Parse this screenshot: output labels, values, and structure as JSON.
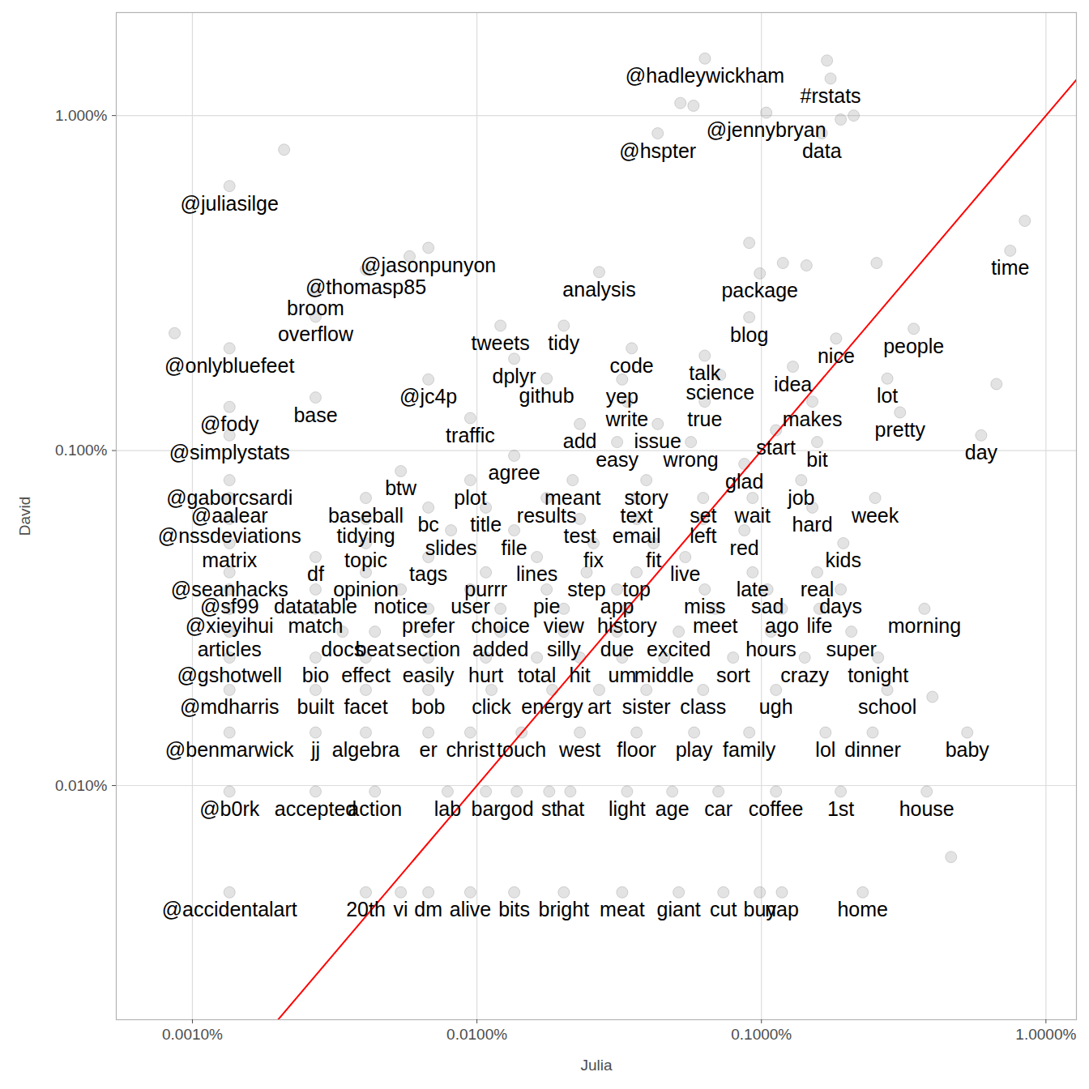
{
  "chart_data": {
    "type": "scatter",
    "x_label": "Julia",
    "y_label": "David",
    "log": true,
    "grid": true,
    "color": "#808080",
    "xlim": [
      0.00054,
      1.28
    ],
    "ylim": [
      0.002,
      2.03
    ],
    "xticks": [
      {
        "value": 0.001,
        "label": "0.0010%"
      },
      {
        "value": 0.01,
        "label": "0.0100%"
      },
      {
        "value": 0.1,
        "label": "0.1000%"
      },
      {
        "value": 1,
        "label": "1.0000%"
      }
    ],
    "yticks": [
      {
        "value": 0.01,
        "label": "0.010%"
      },
      {
        "value": 0.1,
        "label": "0.100%"
      },
      {
        "value": 1,
        "label": "1.000%"
      }
    ],
    "reference_line": {
      "x": [
        0.00054,
        1.28
      ],
      "y": [
        0.00054,
        1.28
      ],
      "color": "#ff0000"
    },
    "points": [
      {
        "label": "@hadleywickham",
        "x": 0.0633,
        "y": 1.48
      },
      {
        "label": "#rstats",
        "x": 0.175,
        "y": 1.29
      },
      {
        "label": "@jennybryan",
        "x": 0.104,
        "y": 1.02
      },
      {
        "label": "@hspter",
        "x": 0.0432,
        "y": 0.885
      },
      {
        "label": "data",
        "x": 0.163,
        "y": 0.885
      },
      {
        "label": "@juliasilge",
        "x": 0.00135,
        "y": 0.616
      },
      {
        "label": "@jasonpunyon",
        "x": 0.00675,
        "y": 0.403
      },
      {
        "label": "time",
        "x": 0.749,
        "y": 0.395
      },
      {
        "label": "@thomasp85",
        "x": 0.00407,
        "y": 0.347
      },
      {
        "label": "analysis",
        "x": 0.0269,
        "y": 0.341
      },
      {
        "label": "package",
        "x": 0.0987,
        "y": 0.338
      },
      {
        "label": "broom",
        "x": 0.00271,
        "y": 0.299
      },
      {
        "label": "overflow",
        "x": 0.00271,
        "y": 0.251
      },
      {
        "label": "blog",
        "x": 0.0906,
        "y": 0.25
      },
      {
        "label": "tweets",
        "x": 0.0121,
        "y": 0.236
      },
      {
        "label": "tidy",
        "x": 0.0202,
        "y": 0.236
      },
      {
        "label": "people",
        "x": 0.343,
        "y": 0.231
      },
      {
        "label": "nice",
        "x": 0.183,
        "y": 0.216
      },
      {
        "label": "@onlybluefeet",
        "x": 0.00135,
        "y": 0.202
      },
      {
        "label": "code",
        "x": 0.035,
        "y": 0.202
      },
      {
        "label": "talk",
        "x": 0.0632,
        "y": 0.192
      },
      {
        "label": "dplyr",
        "x": 0.01352,
        "y": 0.188
      },
      {
        "label": "idea",
        "x": 0.129,
        "y": 0.178
      },
      {
        "label": "science",
        "x": 0.0716,
        "y": 0.168
      },
      {
        "label": "@jc4p",
        "x": 0.00675,
        "y": 0.163
      },
      {
        "label": "github",
        "x": 0.01758,
        "y": 0.164
      },
      {
        "label": "yep",
        "x": 0.0324,
        "y": 0.163
      },
      {
        "label": "lot",
        "x": 0.277,
        "y": 0.164
      },
      {
        "label": "base",
        "x": 0.00271,
        "y": 0.144
      },
      {
        "label": "write",
        "x": 0.0337,
        "y": 0.14
      },
      {
        "label": "true",
        "x": 0.0632,
        "y": 0.14
      },
      {
        "label": "makes",
        "x": 0.151,
        "y": 0.14
      },
      {
        "label": "@fody",
        "x": 0.00135,
        "y": 0.135
      },
      {
        "label": "pretty",
        "x": 0.307,
        "y": 0.13
      },
      {
        "label": "traffic",
        "x": 0.00948,
        "y": 0.125
      },
      {
        "label": "add",
        "x": 0.023,
        "y": 0.12
      },
      {
        "label": "issue",
        "x": 0.0432,
        "y": 0.12
      },
      {
        "label": "start",
        "x": 0.1125,
        "y": 0.115
      },
      {
        "label": "@simplystats",
        "x": 0.00135,
        "y": 0.111
      },
      {
        "label": "day",
        "x": 0.592,
        "y": 0.111
      },
      {
        "label": "easy",
        "x": 0.0311,
        "y": 0.106
      },
      {
        "label": "wrong",
        "x": 0.0565,
        "y": 0.106
      },
      {
        "label": "bit",
        "x": 0.157,
        "y": 0.106
      },
      {
        "label": "agree",
        "x": 0.01352,
        "y": 0.0965
      },
      {
        "label": "glad",
        "x": 0.0871,
        "y": 0.0912
      },
      {
        "label": "btw",
        "x": 0.0054,
        "y": 0.0868
      },
      {
        "label": "@gaborcsardi",
        "x": 0.00135,
        "y": 0.0816
      },
      {
        "label": "plot",
        "x": 0.00948,
        "y": 0.0816
      },
      {
        "label": "meant",
        "x": 0.0217,
        "y": 0.0816
      },
      {
        "label": "story",
        "x": 0.0394,
        "y": 0.0816
      },
      {
        "label": "job",
        "x": 0.138,
        "y": 0.0816
      },
      {
        "label": "@aalear",
        "x": 0.00135,
        "y": 0.0722
      },
      {
        "label": "baseball",
        "x": 0.00407,
        "y": 0.0722
      },
      {
        "label": "results",
        "x": 0.01758,
        "y": 0.0722
      },
      {
        "label": "text",
        "x": 0.0364,
        "y": 0.0722
      },
      {
        "label": "set",
        "x": 0.0624,
        "y": 0.0722
      },
      {
        "label": "wait",
        "x": 0.0931,
        "y": 0.0722
      },
      {
        "label": "week",
        "x": 0.251,
        "y": 0.0722
      },
      {
        "label": "bc",
        "x": 0.00675,
        "y": 0.0676
      },
      {
        "label": "title",
        "x": 0.01075,
        "y": 0.0676
      },
      {
        "label": "hard",
        "x": 0.151,
        "y": 0.0676
      },
      {
        "label": "@nssdeviations",
        "x": 0.00135,
        "y": 0.0625
      },
      {
        "label": "tidying",
        "x": 0.00407,
        "y": 0.0625
      },
      {
        "label": "test",
        "x": 0.023,
        "y": 0.0625
      },
      {
        "label": "email",
        "x": 0.0364,
        "y": 0.0625
      },
      {
        "label": "left",
        "x": 0.0624,
        "y": 0.0625
      },
      {
        "label": "slides",
        "x": 0.00811,
        "y": 0.0578
      },
      {
        "label": "file",
        "x": 0.01352,
        "y": 0.0578
      },
      {
        "label": "red",
        "x": 0.0871,
        "y": 0.0578
      },
      {
        "label": "matrix",
        "x": 0.00135,
        "y": 0.0529
      },
      {
        "label": "topic",
        "x": 0.00407,
        "y": 0.0529
      },
      {
        "label": "fix",
        "x": 0.0257,
        "y": 0.0529
      },
      {
        "label": "fit",
        "x": 0.0418,
        "y": 0.0529
      },
      {
        "label": "kids",
        "x": 0.194,
        "y": 0.0529
      },
      {
        "label": "df",
        "x": 0.00271,
        "y": 0.0481
      },
      {
        "label": "tags",
        "x": 0.00675,
        "y": 0.0481
      },
      {
        "label": "lines",
        "x": 0.01625,
        "y": 0.0481
      },
      {
        "label": "live",
        "x": 0.054,
        "y": 0.0481
      },
      {
        "label": "@seanhacks",
        "x": 0.00135,
        "y": 0.0433
      },
      {
        "label": "opinion",
        "x": 0.00407,
        "y": 0.0433
      },
      {
        "label": "purrr",
        "x": 0.01075,
        "y": 0.0433
      },
      {
        "label": "step",
        "x": 0.0243,
        "y": 0.0433
      },
      {
        "label": "top",
        "x": 0.0364,
        "y": 0.0433
      },
      {
        "label": "late",
        "x": 0.0931,
        "y": 0.0433
      },
      {
        "label": "real",
        "x": 0.157,
        "y": 0.0433
      },
      {
        "label": "@sf99",
        "x": 0.00135,
        "y": 0.0385
      },
      {
        "label": "datatable",
        "x": 0.00271,
        "y": 0.0385
      },
      {
        "label": "notice",
        "x": 0.0054,
        "y": 0.0385
      },
      {
        "label": "user",
        "x": 0.00948,
        "y": 0.0385
      },
      {
        "label": "pie",
        "x": 0.01758,
        "y": 0.0385
      },
      {
        "label": "app",
        "x": 0.0311,
        "y": 0.0385
      },
      {
        "label": "miss",
        "x": 0.0632,
        "y": 0.0385
      },
      {
        "label": "sad",
        "x": 0.105,
        "y": 0.0385
      },
      {
        "label": "days",
        "x": 0.19,
        "y": 0.0385
      },
      {
        "label": "@xieyihui",
        "x": 0.00135,
        "y": 0.0337
      },
      {
        "label": "match",
        "x": 0.00271,
        "y": 0.0337
      },
      {
        "label": "prefer",
        "x": 0.00675,
        "y": 0.0337
      },
      {
        "label": "choice",
        "x": 0.0121,
        "y": 0.0337
      },
      {
        "label": "view",
        "x": 0.0202,
        "y": 0.0337
      },
      {
        "label": "history",
        "x": 0.0337,
        "y": 0.0337
      },
      {
        "label": "meet",
        "x": 0.0688,
        "y": 0.0337
      },
      {
        "label": "ago",
        "x": 0.118,
        "y": 0.0337
      },
      {
        "label": "life",
        "x": 0.16,
        "y": 0.0337
      },
      {
        "label": "morning",
        "x": 0.374,
        "y": 0.0337
      },
      {
        "label": "articles",
        "x": 0.00135,
        "y": 0.0288
      },
      {
        "label": "docs",
        "x": 0.00337,
        "y": 0.0288
      },
      {
        "label": "beat",
        "x": 0.00438,
        "y": 0.0288
      },
      {
        "label": "section",
        "x": 0.00675,
        "y": 0.0288
      },
      {
        "label": "added",
        "x": 0.0121,
        "y": 0.0288
      },
      {
        "label": "silly",
        "x": 0.0202,
        "y": 0.0288
      },
      {
        "label": "due",
        "x": 0.0311,
        "y": 0.0288
      },
      {
        "label": "excited",
        "x": 0.0512,
        "y": 0.0288
      },
      {
        "label": "hours",
        "x": 0.108,
        "y": 0.0288
      },
      {
        "label": "super",
        "x": 0.207,
        "y": 0.0288
      },
      {
        "label": "@gshotwell",
        "x": 0.00135,
        "y": 0.0241
      },
      {
        "label": "bio",
        "x": 0.00271,
        "y": 0.0241
      },
      {
        "label": "effect",
        "x": 0.00407,
        "y": 0.0241
      },
      {
        "label": "easily",
        "x": 0.00675,
        "y": 0.0241
      },
      {
        "label": "hurt",
        "x": 0.01075,
        "y": 0.0241
      },
      {
        "label": "total",
        "x": 0.01625,
        "y": 0.0241
      },
      {
        "label": "hit",
        "x": 0.023,
        "y": 0.0241
      },
      {
        "label": "um",
        "x": 0.0324,
        "y": 0.0241
      },
      {
        "label": "middle",
        "x": 0.0455,
        "y": 0.0241
      },
      {
        "label": "sort",
        "x": 0.0795,
        "y": 0.0241
      },
      {
        "label": "crazy",
        "x": 0.142,
        "y": 0.0241
      },
      {
        "label": "tonight",
        "x": 0.257,
        "y": 0.0241
      },
      {
        "label": "@mdharris",
        "x": 0.00135,
        "y": 0.0193
      },
      {
        "label": "built",
        "x": 0.00271,
        "y": 0.0193
      },
      {
        "label": "facet",
        "x": 0.00407,
        "y": 0.0193
      },
      {
        "label": "bob",
        "x": 0.00675,
        "y": 0.0193
      },
      {
        "label": "click",
        "x": 0.01125,
        "y": 0.0193
      },
      {
        "label": "energy",
        "x": 0.0184,
        "y": 0.0193
      },
      {
        "label": "art",
        "x": 0.0269,
        "y": 0.0193
      },
      {
        "label": "sister",
        "x": 0.0394,
        "y": 0.0193
      },
      {
        "label": "class",
        "x": 0.0624,
        "y": 0.0193
      },
      {
        "label": "ugh",
        "x": 0.1125,
        "y": 0.0193
      },
      {
        "label": "school",
        "x": 0.277,
        "y": 0.0193
      },
      {
        "label": "@benmarwick",
        "x": 0.00135,
        "y": 0.0144
      },
      {
        "label": "jj",
        "x": 0.00271,
        "y": 0.0144
      },
      {
        "label": "algebra",
        "x": 0.00407,
        "y": 0.0144
      },
      {
        "label": "er",
        "x": 0.00675,
        "y": 0.0144
      },
      {
        "label": "christ",
        "x": 0.00948,
        "y": 0.0144
      },
      {
        "label": "touch",
        "x": 0.01435,
        "y": 0.0144
      },
      {
        "label": "west",
        "x": 0.023,
        "y": 0.0144
      },
      {
        "label": "floor",
        "x": 0.0364,
        "y": 0.0144
      },
      {
        "label": "play",
        "x": 0.058,
        "y": 0.0144
      },
      {
        "label": "family",
        "x": 0.0906,
        "y": 0.0144
      },
      {
        "label": "lol",
        "x": 0.168,
        "y": 0.0144
      },
      {
        "label": "dinner",
        "x": 0.246,
        "y": 0.0144
      },
      {
        "label": "baby",
        "x": 0.529,
        "y": 0.0144
      },
      {
        "label": "@b0rk",
        "x": 0.00135,
        "y": 0.0096
      },
      {
        "label": "accepted",
        "x": 0.00271,
        "y": 0.0096
      },
      {
        "label": "action",
        "x": 0.00438,
        "y": 0.0096
      },
      {
        "label": "lab",
        "x": 0.00789,
        "y": 0.0096
      },
      {
        "label": "bar",
        "x": 0.01075,
        "y": 0.0096
      },
      {
        "label": "god",
        "x": 0.0138,
        "y": 0.0096
      },
      {
        "label": "st",
        "x": 0.01795,
        "y": 0.0096
      },
      {
        "label": "hat",
        "x": 0.0213,
        "y": 0.0096
      },
      {
        "label": "light",
        "x": 0.0337,
        "y": 0.0096
      },
      {
        "label": "age",
        "x": 0.0486,
        "y": 0.0096
      },
      {
        "label": "car",
        "x": 0.0706,
        "y": 0.0096
      },
      {
        "label": "coffee",
        "x": 0.1125,
        "y": 0.0096
      },
      {
        "label": "1st",
        "x": 0.19,
        "y": 0.0096
      },
      {
        "label": "house",
        "x": 0.381,
        "y": 0.0096
      },
      {
        "label": "@accidentalart",
        "x": 0.00135,
        "y": 0.0048
      },
      {
        "label": "20th",
        "x": 0.00407,
        "y": 0.0048
      },
      {
        "label": "vi",
        "x": 0.0054,
        "y": 0.0048
      },
      {
        "label": "dm",
        "x": 0.00675,
        "y": 0.0048
      },
      {
        "label": "alive",
        "x": 0.00948,
        "y": 0.0048
      },
      {
        "label": "bits",
        "x": 0.01352,
        "y": 0.0048
      },
      {
        "label": "bright",
        "x": 0.0202,
        "y": 0.0048
      },
      {
        "label": "meat",
        "x": 0.0324,
        "y": 0.0048
      },
      {
        "label": "giant",
        "x": 0.0512,
        "y": 0.0048
      },
      {
        "label": "cut",
        "x": 0.0735,
        "y": 0.0048
      },
      {
        "label": "buy",
        "x": 0.0987,
        "y": 0.0048
      },
      {
        "label": "nap",
        "x": 0.118,
        "y": 0.0048
      },
      {
        "label": "home",
        "x": 0.227,
        "y": 0.0048
      },
      {
        "label": null,
        "x": 0.17,
        "y": 1.46
      },
      {
        "label": null,
        "x": 0.0519,
        "y": 1.09
      },
      {
        "label": null,
        "x": 0.0577,
        "y": 1.07
      },
      {
        "label": null,
        "x": 0.19,
        "y": 0.973
      },
      {
        "label": null,
        "x": 0.211,
        "y": 1.0
      },
      {
        "label": null,
        "x": 0.0021,
        "y": 0.791
      },
      {
        "label": null,
        "x": 0.843,
        "y": 0.485
      },
      {
        "label": null,
        "x": 0.0906,
        "y": 0.417
      },
      {
        "label": null,
        "x": 0.0058,
        "y": 0.38
      },
      {
        "label": null,
        "x": 0.254,
        "y": 0.363
      },
      {
        "label": null,
        "x": 0.119,
        "y": 0.363
      },
      {
        "label": null,
        "x": 0.144,
        "y": 0.357
      },
      {
        "label": null,
        "x": 0.000866,
        "y": 0.224
      },
      {
        "label": null,
        "x": 0.67,
        "y": 0.158
      },
      {
        "label": null,
        "x": 0.464,
        "y": 0.00612
      },
      {
        "label": null,
        "x": 0.399,
        "y": 0.0184
      }
    ]
  }
}
